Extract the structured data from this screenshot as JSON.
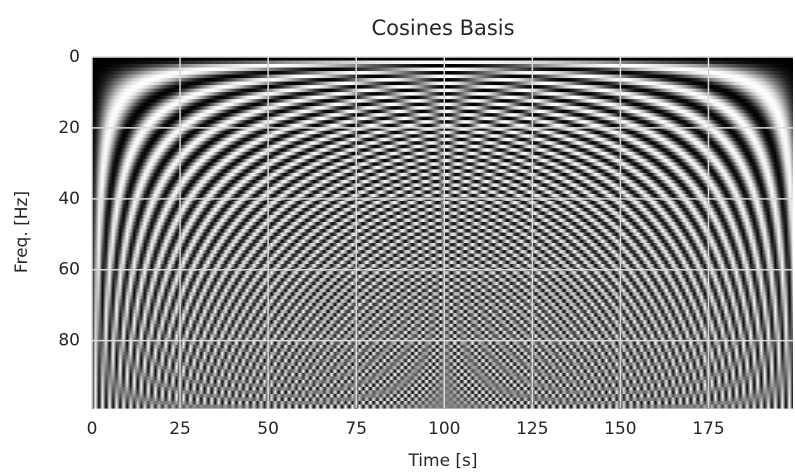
{
  "chart_data": {
    "type": "heatmap",
    "title": "Cosines Basis",
    "x_label": "Time [s]",
    "y_label": "Freq. [Hz]",
    "xlim": [
      0,
      199
    ],
    "ylim": [
      99,
      0
    ],
    "xticks": [
      0,
      25,
      50,
      75,
      100,
      125,
      150,
      175
    ],
    "yticks": [
      0,
      20,
      40,
      60,
      80
    ],
    "colormap": "gray_r",
    "grid": true
  }
}
